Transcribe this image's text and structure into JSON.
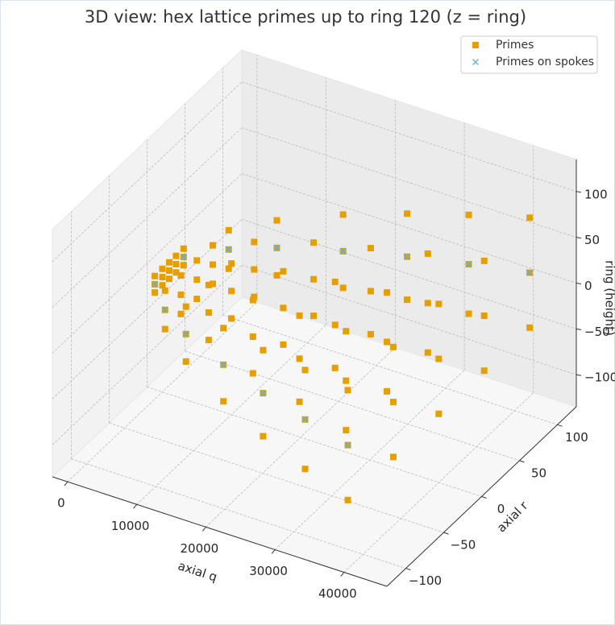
{
  "chart_data": {
    "type": "scatter3d",
    "title": "3D view: hex lattice primes up to ring 120 (z = ring)",
    "xlabel": "axial q",
    "ylabel": "axial r",
    "zlabel": "ring (height)",
    "xlim": [
      -2200,
      46200
    ],
    "ylim": [
      -125,
      125
    ],
    "zlim": [
      -135,
      135
    ],
    "xticks": [
      0,
      10000,
      20000,
      30000,
      40000
    ],
    "yticks": [
      {
        "value": -100,
        "label": "−100"
      },
      {
        "value": -50,
        "label": "−50"
      },
      0,
      50,
      100
    ],
    "zticks": [
      {
        "value": -100,
        "label": "−100"
      },
      {
        "value": -50,
        "label": "−50"
      },
      0,
      50,
      100
    ],
    "grid": true,
    "legend": "upper right",
    "series": [
      {
        "name": "Primes",
        "color": "#e69f00",
        "marker": "square",
        "x": [
          1000,
          1000,
          1000,
          1000,
          1000,
          1000,
          1000,
          1000,
          1000,
          1000,
          1000,
          1000,
          1000,
          1000,
          1000,
          5000,
          5000,
          5000,
          5000,
          5000,
          5000,
          5000,
          5000,
          5000,
          5000,
          5000,
          5000,
          5000,
          5000,
          5000,
          10000,
          10000,
          10000,
          10000,
          10000,
          10000,
          10000,
          10000,
          10000,
          10000,
          10000,
          10000,
          10000,
          10000,
          10000,
          17500,
          17500,
          17500,
          17500,
          17500,
          17500,
          17500,
          17500,
          17500,
          17500,
          17500,
          17500,
          17500,
          17500,
          17500,
          25000,
          25000,
          25000,
          25000,
          25000,
          25000,
          25000,
          25000,
          25000,
          25000,
          25000,
          25000,
          25000,
          25000,
          25000,
          32500,
          32500,
          32500,
          32500,
          32500,
          32500,
          32500,
          32500,
          32500,
          32500,
          32500,
          32500,
          32500,
          32500,
          32500,
          40000,
          40000,
          40000,
          40000,
          40000,
          40000,
          40000,
          40000,
          40000,
          40000,
          40000,
          40000,
          40000,
          40000,
          40000
        ],
        "y": [
          -19,
          -19,
          -19,
          -9,
          -9,
          -9,
          0,
          0,
          0,
          9,
          9,
          9,
          19,
          19,
          19,
          -42,
          -42,
          -42,
          -21,
          -21,
          -21,
          0,
          0,
          0,
          21,
          21,
          21,
          42,
          42,
          42,
          -60,
          -60,
          -60,
          -30,
          -30,
          -30,
          0,
          0,
          0,
          30,
          30,
          30,
          60,
          60,
          60,
          -79,
          -79,
          -79,
          -40,
          -40,
          -40,
          0,
          0,
          0,
          40,
          40,
          40,
          79,
          79,
          79,
          -95,
          -95,
          -95,
          -47,
          -47,
          -47,
          0,
          0,
          0,
          47,
          47,
          47,
          95,
          95,
          95,
          -108,
          -108,
          -108,
          -54,
          -54,
          -54,
          0,
          0,
          0,
          54,
          54,
          54,
          108,
          108,
          108,
          -120,
          -120,
          -120,
          -60,
          -60,
          -60,
          0,
          0,
          0,
          60,
          60,
          60,
          120,
          120,
          120
        ],
        "z": [
          -9,
          0,
          9,
          -9,
          0,
          9,
          -9,
          0,
          9,
          -9,
          0,
          9,
          -9,
          0,
          9,
          -21,
          0,
          21,
          -21,
          0,
          21,
          -21,
          0,
          21,
          -21,
          0,
          21,
          -21,
          0,
          21,
          -30,
          0,
          30,
          -30,
          0,
          30,
          -30,
          0,
          30,
          -30,
          0,
          30,
          -30,
          0,
          30,
          -40,
          0,
          40,
          -40,
          0,
          40,
          -40,
          0,
          40,
          -40,
          0,
          40,
          -40,
          0,
          40,
          -47,
          0,
          47,
          -47,
          0,
          47,
          -47,
          0,
          47,
          -47,
          0,
          47,
          -47,
          0,
          47,
          -54,
          0,
          54,
          -54,
          0,
          54,
          -54,
          0,
          54,
          -54,
          0,
          54,
          -54,
          0,
          54,
          -60,
          0,
          60,
          -60,
          0,
          60,
          -60,
          0,
          60,
          -60,
          0,
          60,
          -60,
          0,
          60
        ]
      },
      {
        "name": "Primes on spokes",
        "color": "#56b4e9",
        "marker": "x",
        "x": [
          1000,
          1000,
          5000,
          5000,
          10000,
          10000,
          17500,
          17500,
          25000,
          25000,
          32500,
          32500,
          40000,
          40000
        ],
        "y": [
          -19,
          19,
          -42,
          42,
          -60,
          60,
          -79,
          79,
          -95,
          95,
          -108,
          108,
          -120,
          120
        ],
        "z": [
          0,
          0,
          0,
          0,
          0,
          0,
          0,
          0,
          0,
          0,
          0,
          0,
          0,
          0
        ]
      }
    ]
  }
}
